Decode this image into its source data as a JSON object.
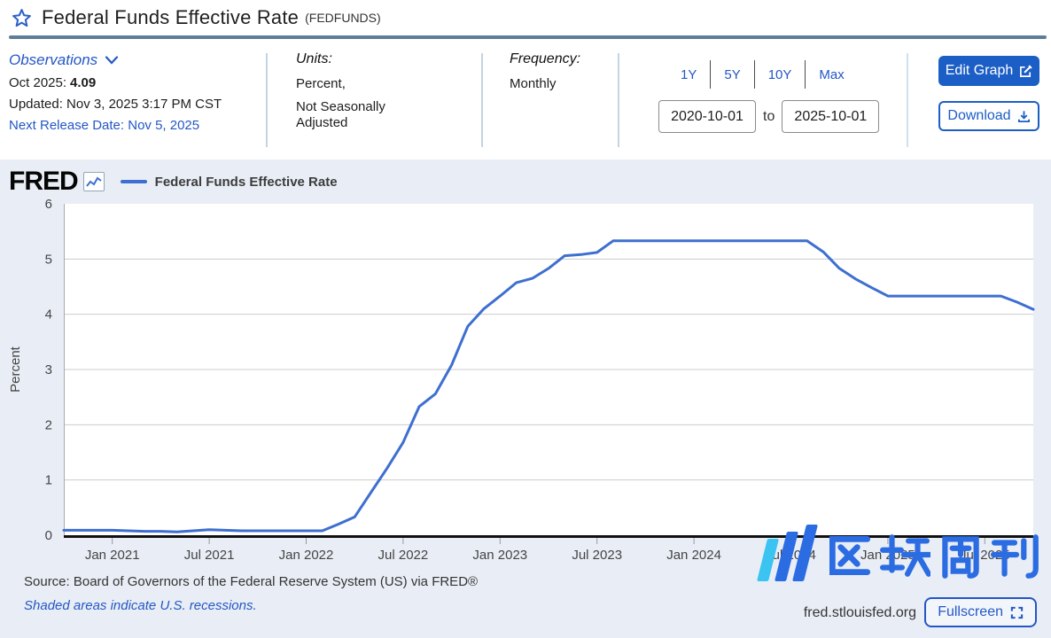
{
  "header": {
    "title": "Federal Funds Effective Rate",
    "series_id_label": "(FEDFUNDS)"
  },
  "toolbar": {
    "observations_label": "Observations",
    "latest_label": "Oct 2025:",
    "latest_value": "4.09",
    "updated": "Updated: Nov 3, 2025 3:17 PM CST",
    "next_release": "Next Release Date: Nov 5, 2025",
    "units_label": "Units:",
    "units_line1": "Percent,",
    "units_line2": "Not Seasonally Adjusted",
    "frequency_label": "Frequency:",
    "frequency_value": "Monthly",
    "ranges": [
      "1Y",
      "5Y",
      "10Y",
      "Max"
    ],
    "date_from": "2020-10-01",
    "to_label": "to",
    "date_to": "2025-10-01",
    "edit_graph_label": "Edit Graph",
    "download_label": "Download"
  },
  "chart": {
    "brand": "FRED",
    "legend_label": "Federal Funds Effective Rate",
    "watermark": "区块周刊",
    "footer": {
      "source": "Source: Board of Governors of the Federal Reserve System (US) via FRED®",
      "recessions_note": "Shaded areas indicate U.S. recessions.",
      "site": "fred.stlouisfed.org",
      "fullscreen_label": "Fullscreen"
    }
  },
  "chart_data": {
    "type": "line",
    "title": "Federal Funds Effective Rate",
    "xlabel": "",
    "ylabel": "Percent",
    "ylim": [
      0,
      6
    ],
    "y_ticks": [
      0,
      1,
      2,
      3,
      4,
      5,
      6
    ],
    "grid": true,
    "legend_position": "top-left",
    "x_start": "2020-10",
    "x_end": "2025-10",
    "x_frequency": "monthly",
    "x_tick_labels": [
      "Jan 2021",
      "Jul 2021",
      "Jan 2022",
      "Jul 2022",
      "Jan 2023",
      "Jul 2023",
      "Jan 2024",
      "Jul 2024",
      "Jan 2025",
      "Jul 2025"
    ],
    "x_tick_month_offsets": [
      3,
      9,
      15,
      21,
      27,
      33,
      39,
      45,
      51,
      57
    ],
    "series": [
      {
        "name": "Federal Funds Effective Rate",
        "color": "#3e6fd0",
        "values": [
          0.09,
          0.09,
          0.09,
          0.09,
          0.08,
          0.07,
          0.07,
          0.06,
          0.08,
          0.1,
          0.09,
          0.08,
          0.08,
          0.08,
          0.08,
          0.08,
          0.08,
          0.2,
          0.33,
          0.77,
          1.21,
          1.68,
          2.33,
          2.56,
          3.08,
          3.78,
          4.1,
          4.33,
          4.57,
          4.65,
          4.83,
          5.06,
          5.08,
          5.12,
          5.33,
          5.33,
          5.33,
          5.33,
          5.33,
          5.33,
          5.33,
          5.33,
          5.33,
          5.33,
          5.33,
          5.33,
          5.33,
          5.13,
          4.83,
          4.64,
          4.48,
          4.33,
          4.33,
          4.33,
          4.33,
          4.33,
          4.33,
          4.33,
          4.33,
          4.22,
          4.09
        ]
      }
    ]
  },
  "colors": {
    "accent_blue": "#1b5ec6",
    "link_blue": "#2457c5",
    "line_blue": "#3e6fd0",
    "separator_steel": "#5f7d97",
    "chart_bg": "#e9eef6",
    "watermark_blue": "#2b6ce2",
    "watermark_cyan": "#3bc3f2"
  }
}
